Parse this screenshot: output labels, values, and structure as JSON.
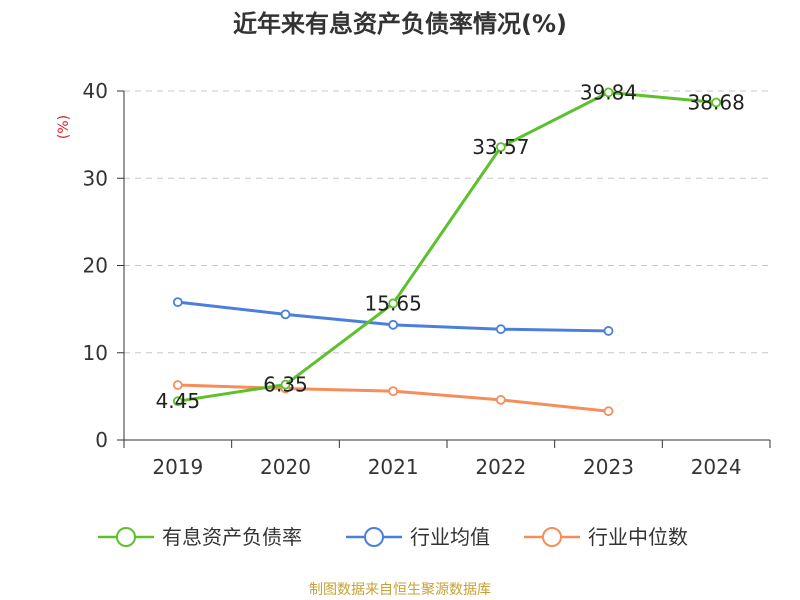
{
  "chart_data": {
    "type": "line",
    "title": "近年来有息资产负债率情况(%)",
    "ylabel": "(%)",
    "xlabel": "",
    "categories": [
      "2019",
      "2020",
      "2021",
      "2022",
      "2023",
      "2024"
    ],
    "ylim": [
      0,
      40
    ],
    "yticks": [
      0,
      10,
      20,
      30,
      40
    ],
    "grid": true,
    "legend_position": "bottom",
    "series": [
      {
        "name": "有息资产负债率",
        "color": "#5cc12c",
        "values": [
          4.45,
          6.35,
          15.65,
          33.57,
          39.84,
          38.68
        ],
        "labels": [
          "4.45",
          "6.35",
          "15.65",
          "33.57",
          "39.84",
          "38.68"
        ]
      },
      {
        "name": "行业均值",
        "color": "#4a7fdc",
        "values": [
          15.8,
          14.4,
          13.2,
          12.7,
          12.5,
          null
        ],
        "labels": []
      },
      {
        "name": "行业中位数",
        "color": "#f68d5a",
        "values": [
          6.3,
          5.9,
          5.6,
          4.6,
          3.3,
          null
        ],
        "labels": []
      }
    ]
  },
  "source": {
    "text": "制图数据来自恒生聚源数据库",
    "color": "#c8a036"
  },
  "ylabel_color": "#e02020"
}
